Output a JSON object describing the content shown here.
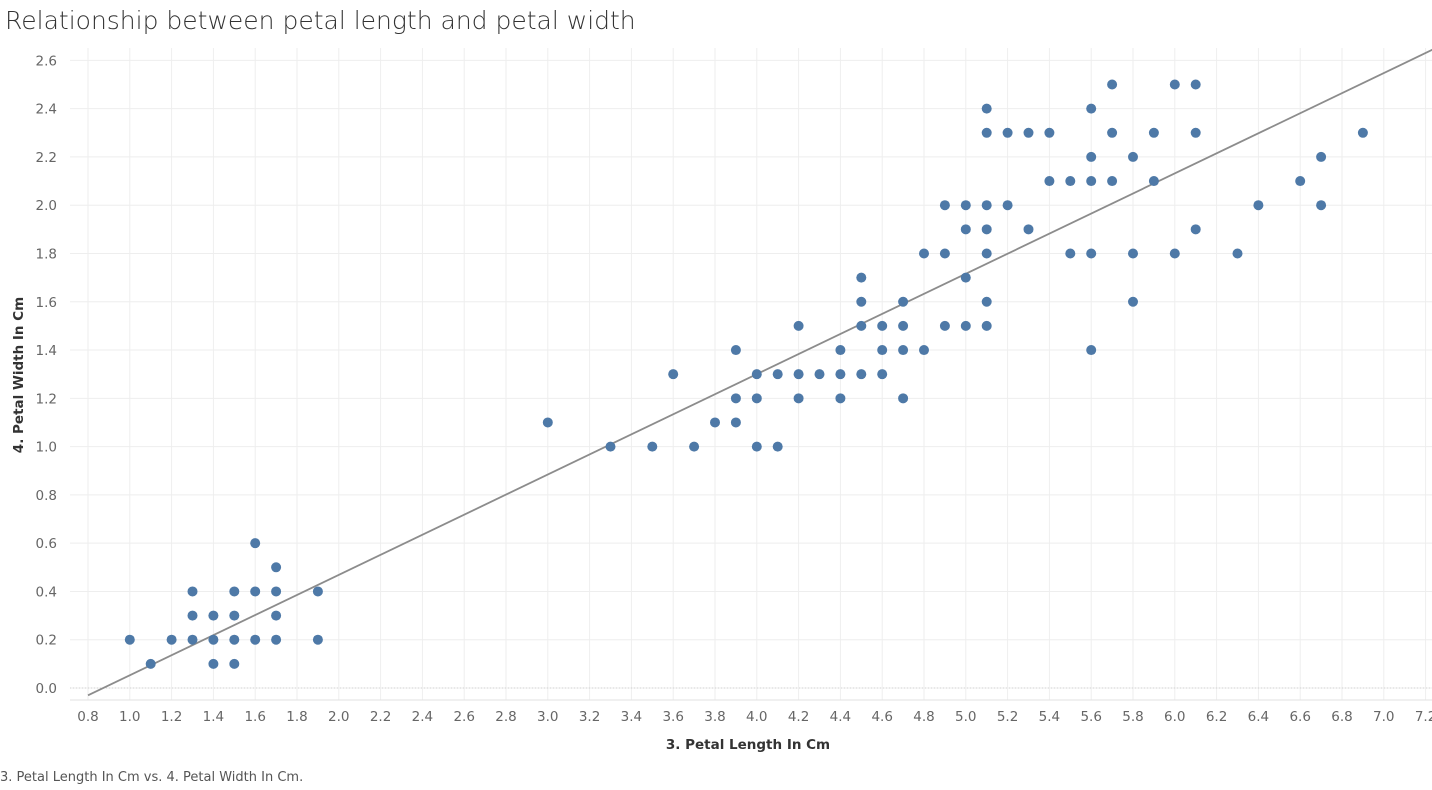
{
  "chart_data": {
    "type": "scatter",
    "title": "Relationship between petal length and petal width",
    "xlabel": "3. Petal Length In Cm",
    "ylabel": "4. Petal Width In Cm",
    "caption": "3. Petal Length In Cm vs. 4. Petal Width In Cm.",
    "xlim": [
      0.7,
      7.25
    ],
    "ylim": [
      -0.05,
      2.65
    ],
    "xticks": [
      "0.8",
      "1.0",
      "1.2",
      "1.4",
      "1.6",
      "1.8",
      "2.0",
      "2.2",
      "2.4",
      "2.6",
      "2.8",
      "3.0",
      "3.2",
      "3.4",
      "3.6",
      "3.8",
      "4.0",
      "4.2",
      "4.4",
      "4.6",
      "4.8",
      "5.0",
      "5.2",
      "5.4",
      "5.6",
      "5.8",
      "6.0",
      "6.2",
      "6.4",
      "6.6",
      "6.8",
      "7.0",
      "7.2"
    ],
    "yticks": [
      "0.0",
      "0.2",
      "0.4",
      "0.6",
      "0.8",
      "1.0",
      "1.2",
      "1.4",
      "1.6",
      "1.8",
      "2.0",
      "2.2",
      "2.4",
      "2.6"
    ],
    "grid": true,
    "trend_line": {
      "slope": 0.4158,
      "intercept": -0.3631
    },
    "marker_color": "#4e79a7",
    "trend_color": "#8c8c8c",
    "points": [
      [
        1.0,
        0.2
      ],
      [
        1.1,
        0.1
      ],
      [
        1.2,
        0.2
      ],
      [
        1.3,
        0.2
      ],
      [
        1.3,
        0.3
      ],
      [
        1.3,
        0.4
      ],
      [
        1.4,
        0.1
      ],
      [
        1.4,
        0.2
      ],
      [
        1.4,
        0.3
      ],
      [
        1.5,
        0.1
      ],
      [
        1.5,
        0.2
      ],
      [
        1.5,
        0.3
      ],
      [
        1.5,
        0.4
      ],
      [
        1.6,
        0.2
      ],
      [
        1.6,
        0.4
      ],
      [
        1.6,
        0.6
      ],
      [
        1.7,
        0.2
      ],
      [
        1.7,
        0.3
      ],
      [
        1.7,
        0.4
      ],
      [
        1.7,
        0.5
      ],
      [
        1.9,
        0.2
      ],
      [
        1.9,
        0.4
      ],
      [
        3.0,
        1.1
      ],
      [
        3.3,
        1.0
      ],
      [
        3.5,
        1.0
      ],
      [
        3.6,
        1.3
      ],
      [
        3.7,
        1.0
      ],
      [
        3.8,
        1.1
      ],
      [
        3.9,
        1.1
      ],
      [
        3.9,
        1.2
      ],
      [
        3.9,
        1.4
      ],
      [
        4.0,
        1.0
      ],
      [
        4.0,
        1.2
      ],
      [
        4.0,
        1.3
      ],
      [
        4.1,
        1.0
      ],
      [
        4.1,
        1.3
      ],
      [
        4.2,
        1.2
      ],
      [
        4.2,
        1.3
      ],
      [
        4.2,
        1.5
      ],
      [
        4.3,
        1.3
      ],
      [
        4.4,
        1.2
      ],
      [
        4.4,
        1.3
      ],
      [
        4.4,
        1.4
      ],
      [
        4.5,
        1.3
      ],
      [
        4.5,
        1.5
      ],
      [
        4.5,
        1.6
      ],
      [
        4.5,
        1.7
      ],
      [
        4.6,
        1.3
      ],
      [
        4.6,
        1.4
      ],
      [
        4.6,
        1.5
      ],
      [
        4.7,
        1.2
      ],
      [
        4.7,
        1.4
      ],
      [
        4.7,
        1.5
      ],
      [
        4.7,
        1.6
      ],
      [
        4.8,
        1.4
      ],
      [
        4.8,
        1.8
      ],
      [
        4.9,
        1.5
      ],
      [
        4.9,
        1.8
      ],
      [
        4.9,
        2.0
      ],
      [
        5.0,
        1.5
      ],
      [
        5.0,
        1.7
      ],
      [
        5.0,
        1.9
      ],
      [
        5.0,
        2.0
      ],
      [
        5.1,
        1.5
      ],
      [
        5.1,
        1.6
      ],
      [
        5.1,
        1.8
      ],
      [
        5.1,
        1.9
      ],
      [
        5.1,
        2.0
      ],
      [
        5.1,
        2.3
      ],
      [
        5.1,
        2.4
      ],
      [
        5.2,
        2.0
      ],
      [
        5.2,
        2.3
      ],
      [
        5.3,
        1.9
      ],
      [
        5.3,
        2.3
      ],
      [
        5.4,
        2.1
      ],
      [
        5.4,
        2.3
      ],
      [
        5.5,
        1.8
      ],
      [
        5.5,
        2.1
      ],
      [
        5.6,
        1.4
      ],
      [
        5.6,
        1.8
      ],
      [
        5.6,
        2.1
      ],
      [
        5.6,
        2.2
      ],
      [
        5.6,
        2.4
      ],
      [
        5.7,
        2.1
      ],
      [
        5.7,
        2.3
      ],
      [
        5.7,
        2.5
      ],
      [
        5.8,
        1.6
      ],
      [
        5.8,
        1.8
      ],
      [
        5.8,
        2.2
      ],
      [
        5.9,
        2.1
      ],
      [
        5.9,
        2.3
      ],
      [
        6.0,
        1.8
      ],
      [
        6.0,
        2.5
      ],
      [
        6.1,
        1.9
      ],
      [
        6.1,
        2.3
      ],
      [
        6.1,
        2.5
      ],
      [
        6.3,
        1.8
      ],
      [
        6.4,
        2.0
      ],
      [
        6.6,
        2.1
      ],
      [
        6.7,
        2.0
      ],
      [
        6.7,
        2.2
      ],
      [
        6.9,
        2.3
      ]
    ]
  }
}
